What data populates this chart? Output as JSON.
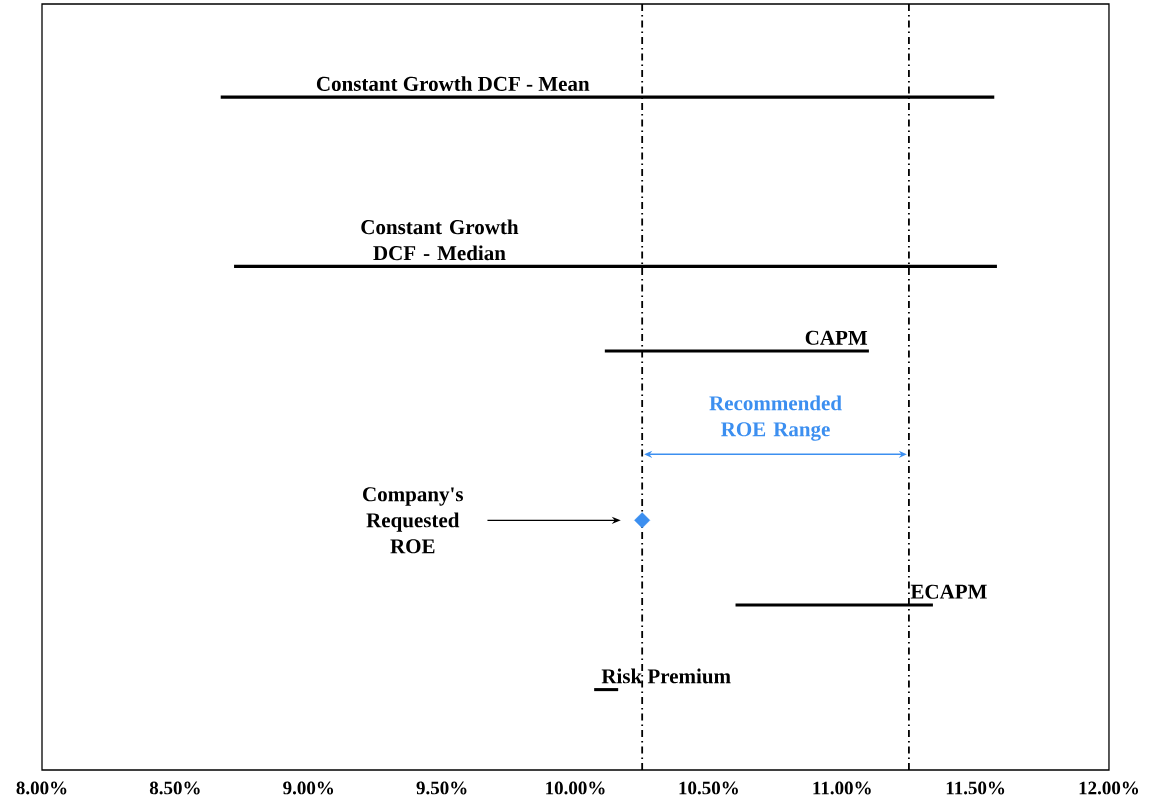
{
  "chart_data": {
    "type": "bar",
    "orientation": "horizontal",
    "grid": false,
    "categories": [
      "Constant Growth DCF - Mean",
      null,
      "Constant Growth DCF - Median",
      "CAPM",
      null,
      "Company's Requested ROE",
      "ECAPM",
      "Risk Premium"
    ],
    "series": [
      {
        "type": "bar",
        "color": "#000000",
        "base": [
          8.67,
          null,
          8.72,
          10.11,
          null,
          null,
          10.6,
          10.07
        ],
        "values": [
          2.9,
          null,
          2.86,
          0.99,
          null,
          null,
          0.74,
          0.09
        ]
      },
      {
        "type": "scatter",
        "color": "#3c8ff0",
        "marker": "diamond",
        "values": [
          null,
          null,
          null,
          null,
          null,
          10.25,
          null,
          null
        ]
      }
    ],
    "xlim": [
      8,
      12
    ],
    "xticks": [
      {
        "value": 8,
        "label": "8.00%"
      },
      {
        "value": 8.5,
        "label": "8.50%"
      },
      {
        "value": 9,
        "label": "9.00%"
      },
      {
        "value": 9.5,
        "label": "9.50%"
      },
      {
        "value": 10,
        "label": "10.00%"
      },
      {
        "value": 10.5,
        "label": "10.50%"
      },
      {
        "value": 11,
        "label": "11.00%"
      },
      {
        "value": 11.5,
        "label": "11.50%"
      },
      {
        "value": 12,
        "label": "12.00%"
      }
    ],
    "ref_lines": [
      {
        "axis": "x",
        "value": 10.25
      },
      {
        "axis": "x",
        "value": 11.25
      }
    ],
    "annotations": [
      "Recommended ROE Range"
    ]
  }
}
